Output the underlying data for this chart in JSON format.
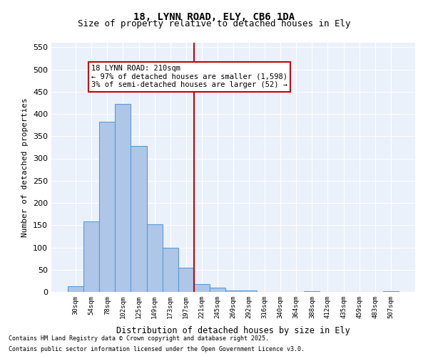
{
  "title_line1": "18, LYNN ROAD, ELY, CB6 1DA",
  "title_line2": "Size of property relative to detached houses in Ely",
  "xlabel": "Distribution of detached houses by size in Ely",
  "ylabel": "Number of detached properties",
  "categories": [
    "30sqm",
    "54sqm",
    "78sqm",
    "102sqm",
    "125sqm",
    "149sqm",
    "173sqm",
    "197sqm",
    "221sqm",
    "245sqm",
    "269sqm",
    "292sqm",
    "316sqm",
    "340sqm",
    "364sqm",
    "388sqm",
    "412sqm",
    "435sqm",
    "459sqm",
    "483sqm",
    "507sqm"
  ],
  "values": [
    13,
    158,
    383,
    423,
    328,
    152,
    100,
    55,
    18,
    9,
    4,
    4,
    0,
    0,
    0,
    1,
    0,
    0,
    0,
    0,
    1
  ],
  "bar_color": "#aec6e8",
  "bar_edge_color": "#5b9bd5",
  "vline_x": 7.5,
  "vline_color": "#cc0000",
  "annotation_title": "18 LYNN ROAD: 210sqm",
  "annotation_line1": "← 97% of detached houses are smaller (1,598)",
  "annotation_line2": "3% of semi-detached houses are larger (52) →",
  "annotation_box_color": "#cc0000",
  "ylim": [
    0,
    560
  ],
  "yticks": [
    0,
    50,
    100,
    150,
    200,
    250,
    300,
    350,
    400,
    450,
    500,
    550
  ],
  "footnote1": "Contains HM Land Registry data © Crown copyright and database right 2025.",
  "footnote2": "Contains public sector information licensed under the Open Government Licence v3.0.",
  "background_color": "#eaf1fb",
  "plot_bg_color": "#eaf1fb"
}
